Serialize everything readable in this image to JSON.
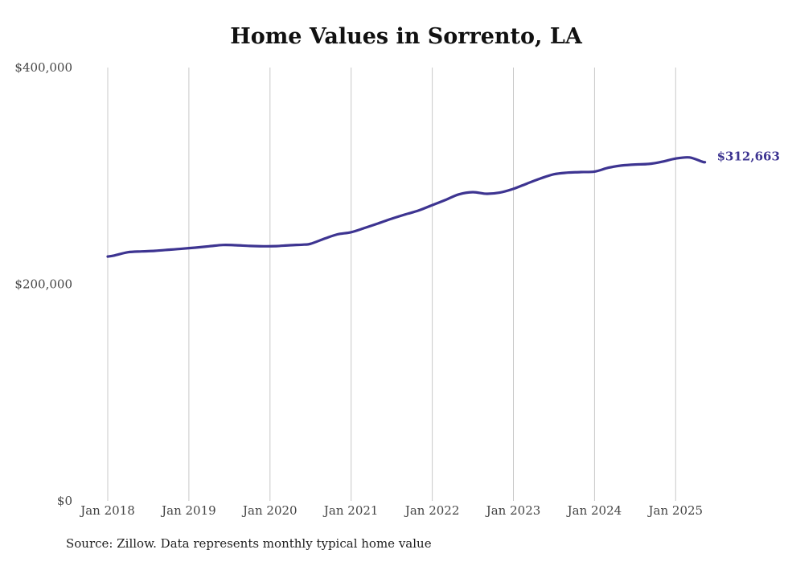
{
  "chart_data": {
    "type": "line",
    "title": "Home Values in Sorrento, LA",
    "source_note": "Source: Zillow. Data represents monthly typical home value",
    "y_ticks": [
      {
        "value": 400000,
        "label": "$400,000"
      },
      {
        "value": 200000,
        "label": "$200,000"
      },
      {
        "value": 0,
        "label": "$0"
      }
    ],
    "ylim": [
      0,
      400000
    ],
    "x_ticks": [
      {
        "value": 2018.0,
        "label": "Jan 2018"
      },
      {
        "value": 2019.0,
        "label": "Jan 2019"
      },
      {
        "value": 2020.0,
        "label": "Jan 2020"
      },
      {
        "value": 2021.0,
        "label": "Jan 2021"
      },
      {
        "value": 2022.0,
        "label": "Jan 2022"
      },
      {
        "value": 2023.0,
        "label": "Jan 2023"
      },
      {
        "value": 2024.0,
        "label": "Jan 2024"
      },
      {
        "value": 2025.0,
        "label": "Jan 2025"
      }
    ],
    "grid": "vertical",
    "line_color": "#3d3491",
    "series": [
      {
        "end_label": "$312,663",
        "points": [
          [
            2018.0,
            225500
          ],
          [
            2018.08,
            226500
          ],
          [
            2018.25,
            229500
          ],
          [
            2018.42,
            230300
          ],
          [
            2018.58,
            230800
          ],
          [
            2018.75,
            231800
          ],
          [
            2018.92,
            232800
          ],
          [
            2019.08,
            233800
          ],
          [
            2019.25,
            235000
          ],
          [
            2019.42,
            236200
          ],
          [
            2019.58,
            236000
          ],
          [
            2019.75,
            235300
          ],
          [
            2019.92,
            235000
          ],
          [
            2020.08,
            235200
          ],
          [
            2020.25,
            236000
          ],
          [
            2020.42,
            236600
          ],
          [
            2020.5,
            237300
          ],
          [
            2020.67,
            242000
          ],
          [
            2020.83,
            246000
          ],
          [
            2021.0,
            248000
          ],
          [
            2021.17,
            252000
          ],
          [
            2021.33,
            256000
          ],
          [
            2021.5,
            260500
          ],
          [
            2021.67,
            264500
          ],
          [
            2021.83,
            268000
          ],
          [
            2022.0,
            273000
          ],
          [
            2022.17,
            278000
          ],
          [
            2022.33,
            283000
          ],
          [
            2022.5,
            285000
          ],
          [
            2022.67,
            283500
          ],
          [
            2022.83,
            284500
          ],
          [
            2023.0,
            288000
          ],
          [
            2023.17,
            293000
          ],
          [
            2023.33,
            297500
          ],
          [
            2023.5,
            301500
          ],
          [
            2023.67,
            303000
          ],
          [
            2023.83,
            303500
          ],
          [
            2024.0,
            304000
          ],
          [
            2024.17,
            307500
          ],
          [
            2024.33,
            309500
          ],
          [
            2024.5,
            310500
          ],
          [
            2024.67,
            311000
          ],
          [
            2024.83,
            313000
          ],
          [
            2025.0,
            316000
          ],
          [
            2025.17,
            317000
          ],
          [
            2025.33,
            313000
          ],
          [
            2025.36,
            312663
          ]
        ]
      }
    ]
  }
}
